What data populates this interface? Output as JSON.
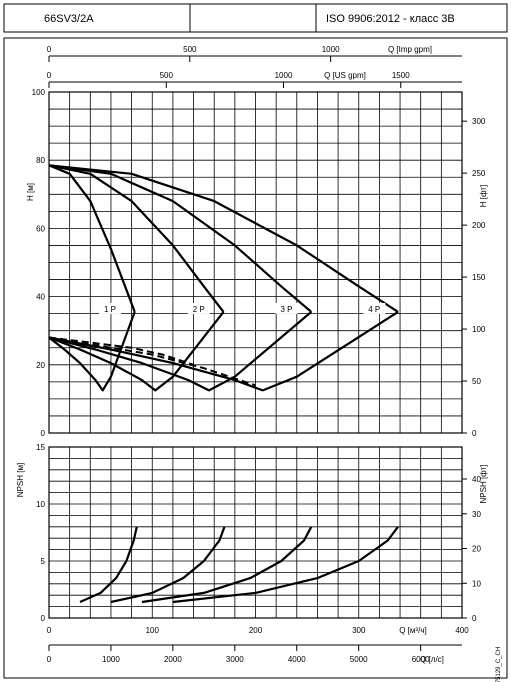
{
  "header": {
    "model": "66SV3/2A",
    "standard": "ISO 9906:2012 - класс 3B"
  },
  "chart_data": [
    {
      "type": "line",
      "name_panel": "head",
      "ylabel_left": "H [м]",
      "ylabel_right": "H [фт]",
      "ylim": [
        0,
        100
      ],
      "yticks": [
        0,
        20,
        40,
        60,
        80,
        100
      ],
      "right_ylim_ft": [
        0,
        328.08
      ],
      "right_yticks": [
        0,
        50,
        100,
        150,
        200,
        250,
        300
      ],
      "top_axis_imp": {
        "label": "Q [Imp gpm]",
        "ticks": [
          0,
          500,
          1000
        ]
      },
      "top_axis_us": {
        "label": "Q [US gpm]",
        "ticks": [
          0,
          500,
          1000,
          1500
        ]
      },
      "grid": true,
      "series": [
        {
          "name": "1 P",
          "kind": "head",
          "x": [
            0,
            20,
            40,
            60,
            75,
            83
          ],
          "y": [
            78.5,
            76,
            68,
            54,
            42,
            35.5
          ]
        },
        {
          "name": "1 P",
          "kind": "efficiency",
          "x": [
            0,
            15,
            30,
            45,
            52,
            60,
            83
          ],
          "y": [
            28,
            24.5,
            20.5,
            15.5,
            12.5,
            16.5,
            35.5
          ]
        },
        {
          "name": "2 P",
          "kind": "head",
          "x": [
            0,
            40,
            80,
            120,
            150,
            169
          ],
          "y": [
            78.5,
            76,
            68,
            55,
            43,
            35.5
          ]
        },
        {
          "name": "2 P",
          "kind": "efficiency",
          "x": [
            0,
            30,
            60,
            90,
            103,
            120,
            169
          ],
          "y": [
            28,
            24.5,
            20.5,
            15.5,
            12.5,
            16.5,
            35.5
          ]
        },
        {
          "name": "3 P",
          "kind": "head",
          "x": [
            0,
            60,
            120,
            180,
            225,
            254
          ],
          "y": [
            78.5,
            76,
            68,
            55,
            43,
            35.5
          ]
        },
        {
          "name": "3 P",
          "kind": "efficiency",
          "x": [
            0,
            45,
            90,
            135,
            155,
            180,
            254
          ],
          "y": [
            28,
            24.5,
            20.5,
            15.5,
            12.5,
            16.5,
            35.5
          ]
        },
        {
          "name": "4 P",
          "kind": "head",
          "x": [
            0,
            80,
            160,
            240,
            300,
            338
          ],
          "y": [
            78.5,
            76,
            68,
            55,
            43,
            35.5
          ]
        },
        {
          "name": "4 P",
          "kind": "efficiency",
          "x": [
            0,
            60,
            120,
            180,
            207,
            240,
            338
          ],
          "y": [
            28,
            24.5,
            20.5,
            15.5,
            12.5,
            16.5,
            35.5
          ]
        },
        {
          "name": "",
          "kind": "dashed",
          "x": [
            0,
            40,
            80,
            110,
            140
          ],
          "y": [
            28,
            26.5,
            25,
            23,
            20
          ]
        },
        {
          "name": "",
          "kind": "dashed",
          "x": [
            0,
            50,
            100,
            150,
            190,
            200
          ],
          "y": [
            28,
            25.5,
            23,
            19,
            15,
            14
          ]
        }
      ],
      "series_labels": [
        "1 P",
        "2 P",
        "3 P",
        "4 P"
      ]
    },
    {
      "type": "line",
      "name_panel": "npsh",
      "ylabel_left": "NPSH [м]",
      "ylabel_right": "NPSH [фт]",
      "ylim": [
        0,
        15
      ],
      "yticks": [
        0,
        5,
        10,
        15
      ],
      "right_ylim_ft": [
        0,
        49.21
      ],
      "right_yticks": [
        0,
        10,
        20,
        30,
        40
      ],
      "xlabel_m3h": "Q [м³/ч]",
      "xlim_m3h": [
        0,
        400
      ],
      "xticks_m3h": [
        0,
        100,
        200,
        300,
        400
      ],
      "xlabel_ls": "Q [л/с]",
      "xticks_ls": [
        0,
        1000,
        2000,
        3000,
        4000,
        5000,
        6000
      ],
      "grid": true,
      "series": [
        {
          "name": "1 P",
          "x": [
            30,
            50,
            65,
            75,
            82,
            85
          ],
          "y": [
            1.4,
            2.2,
            3.5,
            5.0,
            6.8,
            8.0
          ]
        },
        {
          "name": "2 P",
          "x": [
            60,
            100,
            130,
            150,
            165,
            170
          ],
          "y": [
            1.4,
            2.2,
            3.5,
            5.0,
            6.8,
            8.0
          ]
        },
        {
          "name": "3 P",
          "x": [
            90,
            150,
            195,
            225,
            247,
            254
          ],
          "y": [
            1.4,
            2.2,
            3.5,
            5.0,
            6.8,
            8.0
          ]
        },
        {
          "name": "4 P",
          "x": [
            120,
            200,
            260,
            300,
            328,
            338
          ],
          "y": [
            1.4,
            2.2,
            3.5,
            5.0,
            6.8,
            8.0
          ]
        }
      ]
    }
  ],
  "footnote": "75129_C_CH"
}
